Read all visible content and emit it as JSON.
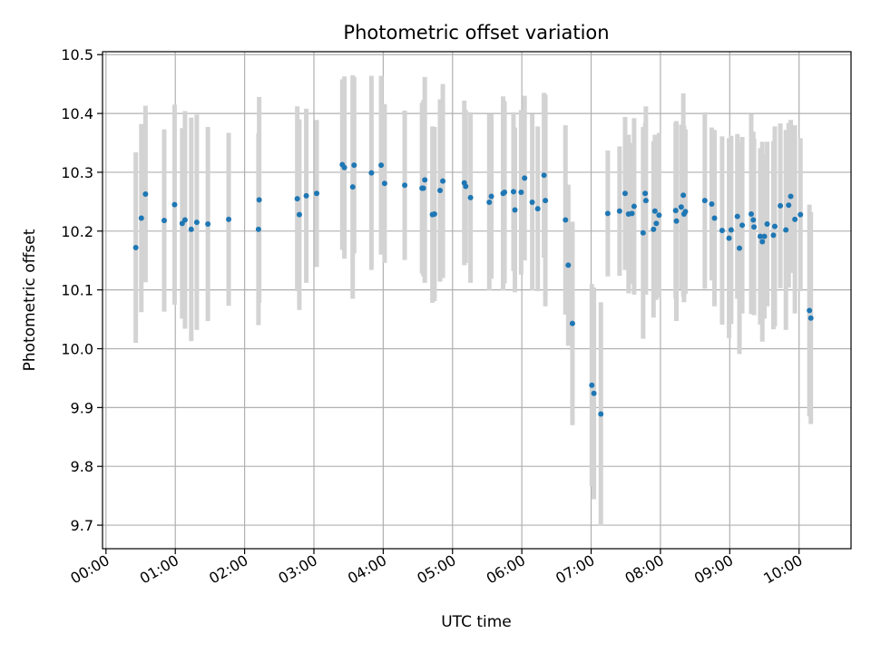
{
  "chart_data": {
    "type": "scatter",
    "title": "Photometric offset variation",
    "xlabel": "UTC time",
    "ylabel": "Photometric offset",
    "grid": true,
    "x_unit": "hours",
    "xlim": [
      -0.05,
      10.75
    ],
    "ylim": [
      9.66,
      10.505
    ],
    "x_ticks": [
      {
        "value": 0,
        "label": "00:00"
      },
      {
        "value": 1,
        "label": "01:00"
      },
      {
        "value": 2,
        "label": "02:00"
      },
      {
        "value": 3,
        "label": "03:00"
      },
      {
        "value": 4,
        "label": "04:00"
      },
      {
        "value": 5,
        "label": "05:00"
      },
      {
        "value": 6,
        "label": "06:00"
      },
      {
        "value": 7,
        "label": "07:00"
      },
      {
        "value": 8,
        "label": "08:00"
      },
      {
        "value": 9,
        "label": "09:00"
      },
      {
        "value": 10,
        "label": "10:00"
      }
    ],
    "y_ticks": [
      {
        "value": 9.7,
        "label": "9.7"
      },
      {
        "value": 9.8,
        "label": "9.8"
      },
      {
        "value": 9.9,
        "label": "9.9"
      },
      {
        "value": 10.0,
        "label": "10.0"
      },
      {
        "value": 10.1,
        "label": "10.1"
      },
      {
        "value": 10.2,
        "label": "10.2"
      },
      {
        "value": 10.3,
        "label": "10.3"
      },
      {
        "value": 10.4,
        "label": "10.4"
      },
      {
        "value": 10.5,
        "label": "10.5"
      }
    ],
    "colors": {
      "point": "#1f77b4",
      "errorbar": "#d3d3d3",
      "grid": "#b0b0b0",
      "axes": "#000000"
    },
    "series": [
      {
        "name": "offset",
        "x": [
          0.43,
          0.51,
          0.57,
          0.84,
          0.99,
          1.1,
          1.14,
          1.23,
          1.31,
          1.47,
          1.77,
          2.2,
          2.21,
          2.76,
          2.79,
          2.89,
          3.04,
          3.41,
          3.44,
          3.56,
          3.58,
          3.83,
          3.97,
          4.02,
          4.31,
          4.56,
          4.58,
          4.6,
          4.71,
          4.74,
          4.82,
          4.86,
          5.17,
          5.19,
          5.26,
          5.53,
          5.56,
          5.73,
          5.75,
          5.88,
          5.9,
          5.99,
          6.04,
          6.15,
          6.23,
          6.32,
          6.34,
          6.63,
          6.67,
          6.73,
          7.01,
          7.04,
          7.14,
          7.24,
          7.41,
          7.49,
          7.54,
          7.59,
          7.62,
          7.75,
          7.78,
          7.79,
          7.9,
          7.92,
          7.94,
          7.98,
          8.22,
          8.23,
          8.3,
          8.33,
          8.34,
          8.36,
          8.64,
          8.74,
          8.78,
          8.89,
          8.99,
          9.02,
          9.11,
          9.14,
          9.18,
          9.31,
          9.34,
          9.35,
          9.44,
          9.47,
          9.5,
          9.54,
          9.63,
          9.65,
          9.73,
          9.81,
          9.85,
          9.88,
          9.94,
          10.02,
          10.15,
          10.17
        ],
        "y": [
          10.172,
          10.222,
          10.263,
          10.218,
          10.245,
          10.213,
          10.219,
          10.203,
          10.215,
          10.212,
          10.22,
          10.203,
          10.253,
          10.255,
          10.228,
          10.26,
          10.264,
          10.313,
          10.308,
          10.275,
          10.312,
          10.299,
          10.312,
          10.281,
          10.278,
          10.273,
          10.273,
          10.287,
          10.228,
          10.229,
          10.269,
          10.285,
          10.282,
          10.276,
          10.257,
          10.249,
          10.259,
          10.264,
          10.266,
          10.267,
          10.236,
          10.266,
          10.29,
          10.249,
          10.238,
          10.295,
          10.252,
          10.219,
          10.142,
          10.043,
          9.938,
          9.924,
          9.889,
          10.23,
          10.234,
          10.264,
          10.229,
          10.23,
          10.242,
          10.197,
          10.264,
          10.252,
          10.203,
          10.234,
          10.213,
          10.227,
          10.235,
          10.217,
          10.241,
          10.261,
          10.229,
          10.233,
          10.252,
          10.246,
          10.222,
          10.201,
          10.188,
          10.202,
          10.225,
          10.171,
          10.21,
          10.229,
          10.219,
          10.207,
          10.191,
          10.182,
          10.191,
          10.212,
          10.193,
          10.208,
          10.243,
          10.202,
          10.244,
          10.259,
          10.22,
          10.228,
          10.065,
          10.052
        ],
        "err": [
          0.162,
          0.16,
          0.15,
          0.155,
          0.17,
          0.162,
          0.185,
          0.19,
          0.183,
          0.165,
          0.147,
          0.163,
          0.175,
          0.157,
          0.162,
          0.148,
          0.125,
          0.145,
          0.155,
          0.19,
          0.15,
          0.165,
          0.152,
          0.135,
          0.127,
          0.145,
          0.15,
          0.175,
          0.15,
          0.148,
          0.155,
          0.165,
          0.14,
          0.13,
          0.145,
          0.15,
          0.14,
          0.165,
          0.155,
          0.135,
          0.14,
          0.14,
          0.14,
          0.15,
          0.14,
          0.14,
          0.18,
          0.161,
          0.137,
          0.173,
          0.172,
          0.18,
          0.19,
          0.107,
          0.11,
          0.13,
          0.135,
          0.12,
          0.15,
          0.18,
          0.12,
          0.16,
          0.15,
          0.13,
          0.13,
          0.14,
          0.15,
          0.17,
          0.14,
          0.173,
          0.15,
          0.14,
          0.15,
          0.13,
          0.15,
          0.16,
          0.17,
          0.16,
          0.14,
          0.18,
          0.15,
          0.17,
          0.15,
          0.15,
          0.15,
          0.17,
          0.14,
          0.14,
          0.16,
          0.17,
          0.14,
          0.17,
          0.14,
          0.13,
          0.16,
          0.13,
          0.18,
          0.18
        ]
      }
    ]
  }
}
